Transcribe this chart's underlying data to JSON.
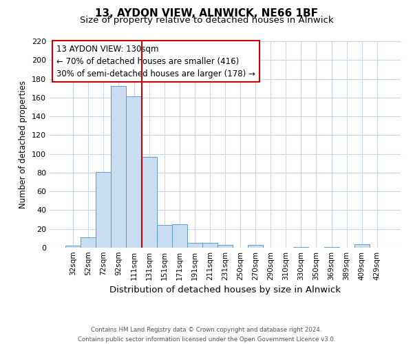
{
  "title": "13, AYDON VIEW, ALNWICK, NE66 1BF",
  "subtitle": "Size of property relative to detached houses in Alnwick",
  "xlabel": "Distribution of detached houses by size in Alnwick",
  "ylabel": "Number of detached properties",
  "bar_labels": [
    "32sqm",
    "52sqm",
    "72sqm",
    "92sqm",
    "111sqm",
    "131sqm",
    "151sqm",
    "171sqm",
    "191sqm",
    "211sqm",
    "231sqm",
    "250sqm",
    "270sqm",
    "290sqm",
    "310sqm",
    "330sqm",
    "350sqm",
    "369sqm",
    "389sqm",
    "409sqm",
    "429sqm"
  ],
  "bar_heights": [
    2,
    11,
    81,
    172,
    161,
    97,
    24,
    25,
    5,
    5,
    3,
    0,
    3,
    0,
    0,
    1,
    0,
    1,
    0,
    4,
    0
  ],
  "bar_color": "#c9ddf0",
  "bar_edge_color": "#5b9bd5",
  "vline_x": 5,
  "vline_color": "#cc0000",
  "annotation_title": "13 AYDON VIEW: 130sqm",
  "annotation_line1": "← 70% of detached houses are smaller (416)",
  "annotation_line2": "30% of semi-detached houses are larger (178) →",
  "annotation_box_color": "#cc0000",
  "ylim": [
    0,
    220
  ],
  "yticks": [
    0,
    20,
    40,
    60,
    80,
    100,
    120,
    140,
    160,
    180,
    200,
    220
  ],
  "footnote1": "Contains HM Land Registry data © Crown copyright and database right 2024.",
  "footnote2": "Contains public sector information licensed under the Open Government Licence v3.0.",
  "background_color": "#ffffff",
  "grid_color": "#c8d8e8",
  "title_fontsize": 11,
  "subtitle_fontsize": 9.5
}
